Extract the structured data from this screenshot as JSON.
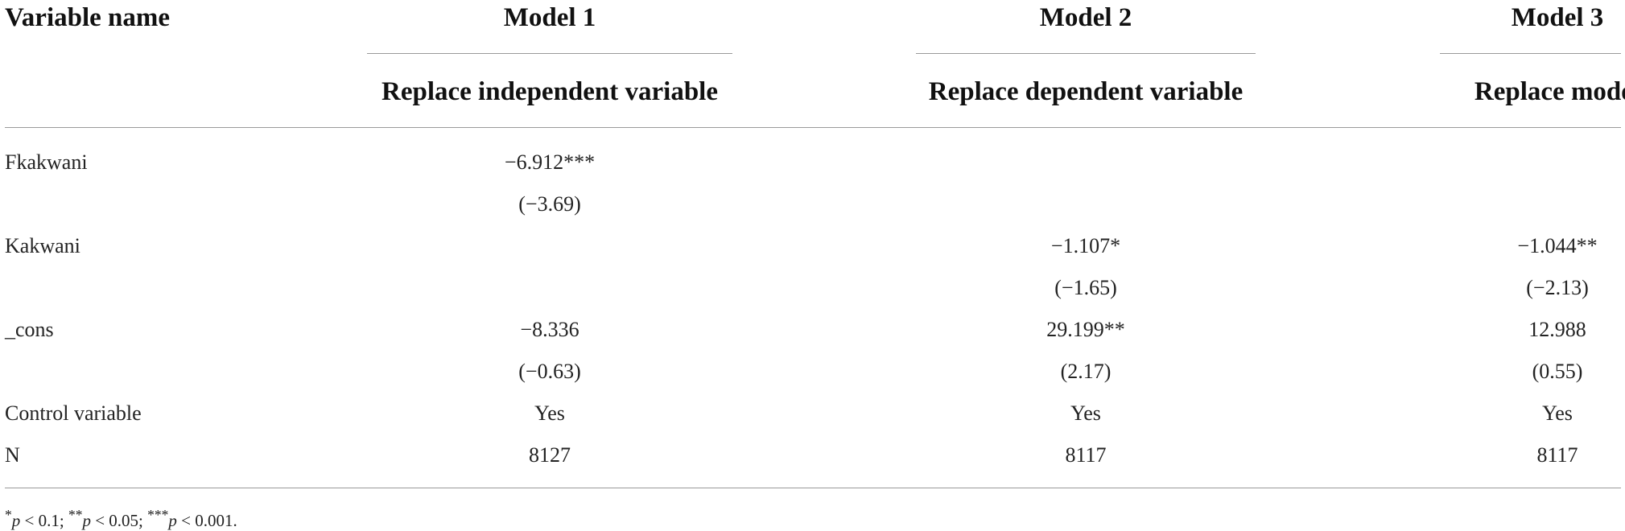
{
  "table": {
    "headers": {
      "variable_name": "Variable name",
      "model1": "Model 1",
      "model2": "Model 2",
      "model3": "Model 3",
      "model1_sub": "Replace independent variable",
      "model2_sub": "Replace dependent variable",
      "model3_sub": "Replace model"
    },
    "rows": [
      {
        "label": "Fkakwani",
        "m1": "−6.912***",
        "m2": "",
        "m3": ""
      },
      {
        "label": "",
        "m1": "(−3.69)",
        "m2": "",
        "m3": ""
      },
      {
        "label": "Kakwani",
        "m1": "",
        "m2": "−1.107*",
        "m3": "−1.044**"
      },
      {
        "label": "",
        "m1": "",
        "m2": "(−1.65)",
        "m3": "(−2.13)"
      },
      {
        "label": "_cons",
        "m1": "−8.336",
        "m2": "29.199**",
        "m3": "12.988"
      },
      {
        "label": "",
        "m1": "(−0.63)",
        "m2": "(2.17)",
        "m3": "(0.55)"
      },
      {
        "label": "Control variable",
        "m1": "Yes",
        "m2": "Yes",
        "m3": "Yes"
      },
      {
        "label": "N",
        "m1": "8127",
        "m2": "8117",
        "m3": "8117"
      }
    ],
    "footnote": {
      "s1": "*",
      "p1": "p",
      "t1": " < 0.1; ",
      "s2": "**",
      "p2": "p",
      "t2": " < 0.05; ",
      "s3": "***",
      "p3": "p",
      "t3": " < 0.001."
    }
  }
}
